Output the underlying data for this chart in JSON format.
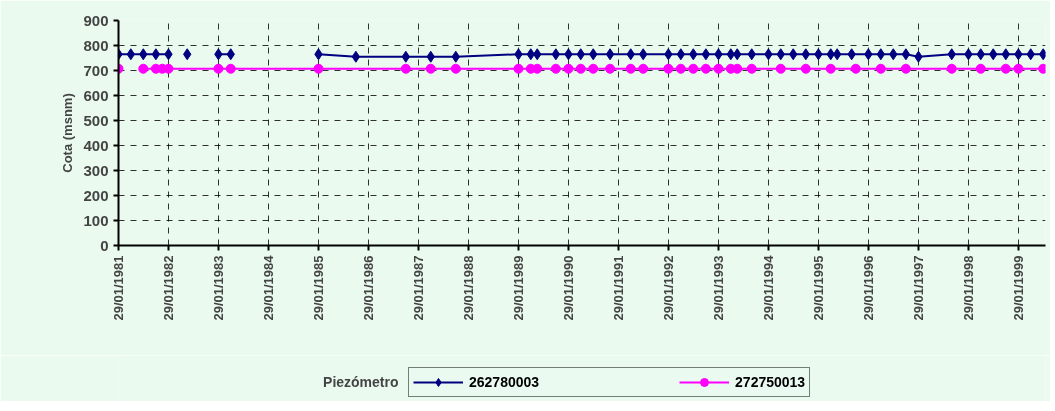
{
  "chart_data": {
    "type": "line",
    "ylabel": "Cota (msnm)",
    "legend_title": "Piezómetro",
    "legend": "bottom",
    "grid": true,
    "line_style": "solid",
    "ylim": [
      0,
      900
    ],
    "yticks": [
      0,
      100,
      200,
      300,
      400,
      500,
      600,
      700,
      800,
      900
    ],
    "xlim": [
      "1981-01-29",
      "1999-08-15"
    ],
    "xticks": [
      {
        "value": "1981-01-29",
        "label": "29/01/1981"
      },
      {
        "value": "1982-01-29",
        "label": "29/01/1982"
      },
      {
        "value": "1983-01-29",
        "label": "29/01/1983"
      },
      {
        "value": "1984-01-29",
        "label": "29/01/1984"
      },
      {
        "value": "1985-01-29",
        "label": "29/01/1985"
      },
      {
        "value": "1986-01-29",
        "label": "29/01/1986"
      },
      {
        "value": "1987-01-29",
        "label": "29/01/1987"
      },
      {
        "value": "1988-01-29",
        "label": "29/01/1988"
      },
      {
        "value": "1989-01-29",
        "label": "29/01/1989"
      },
      {
        "value": "1990-01-29",
        "label": "29/01/1990"
      },
      {
        "value": "1991-01-29",
        "label": "29/01/1991"
      },
      {
        "value": "1992-01-29",
        "label": "29/01/1992"
      },
      {
        "value": "1993-01-29",
        "label": "29/01/1993"
      },
      {
        "value": "1994-01-29",
        "label": "29/01/1994"
      },
      {
        "value": "1995-01-29",
        "label": "29/01/1995"
      },
      {
        "value": "1996-01-29",
        "label": "29/01/1996"
      },
      {
        "value": "1997-01-29",
        "label": "29/01/1997"
      },
      {
        "value": "1998-01-29",
        "label": "29/01/1998"
      },
      {
        "value": "1999-01-29",
        "label": "29/01/1999"
      }
    ],
    "series": [
      {
        "name": "262780003",
        "color": "#000080",
        "marker": "diamond",
        "x": [
          "1981-01-29",
          "1981-04-29",
          "1981-07-29",
          "1981-10-29",
          "1982-01-29",
          "1982-03-29",
          "1982-06-15",
          "1982-09-15",
          "1983-01-29",
          "1983-04-29",
          "1984-03-01",
          "1985-01-29",
          "1985-10-29",
          "1986-10-29",
          "1987-04-29",
          "1987-10-29",
          "1989-01-29",
          "1989-04-29",
          "1989-06-15",
          "1989-10-29",
          "1990-01-29",
          "1990-04-29",
          "1990-07-29",
          "1990-11-29",
          "1991-04-29",
          "1991-07-29",
          "1992-01-29",
          "1992-04-29",
          "1992-07-29",
          "1992-10-29",
          "1993-01-29",
          "1993-04-29",
          "1993-06-15",
          "1993-09-29",
          "1994-01-29",
          "1994-04-29",
          "1994-07-29",
          "1994-10-29",
          "1995-01-29",
          "1995-04-29",
          "1995-06-15",
          "1995-09-29",
          "1996-01-29",
          "1996-04-29",
          "1996-07-29",
          "1996-10-29",
          "1997-01-29",
          "1997-09-29",
          "1998-01-29",
          "1998-04-29",
          "1998-07-29",
          "1998-10-29",
          "1999-01-29",
          "1999-04-29",
          "1999-07-29"
        ],
        "values": [
          765,
          765,
          765,
          765,
          765,
          null,
          765,
          null,
          765,
          765,
          null,
          765,
          755,
          755,
          755,
          755,
          765,
          765,
          765,
          765,
          765,
          765,
          765,
          765,
          765,
          765,
          765,
          765,
          765,
          765,
          765,
          765,
          765,
          765,
          765,
          765,
          765,
          765,
          765,
          765,
          765,
          765,
          765,
          765,
          765,
          765,
          755,
          765,
          765,
          765,
          765,
          765,
          765,
          765,
          765
        ]
      },
      {
        "name": "272750013",
        "color": "#ff00ff",
        "marker": "circle",
        "x": [
          "1981-01-29",
          "1981-04-29",
          "1981-07-29",
          "1981-10-29",
          "1981-12-15",
          "1982-01-29",
          "1983-01-29",
          "1983-04-29",
          "1985-01-29",
          "1986-10-29",
          "1987-04-29",
          "1987-10-29",
          "1989-01-29",
          "1989-04-29",
          "1989-06-15",
          "1989-10-29",
          "1990-01-29",
          "1990-04-29",
          "1990-07-29",
          "1990-11-29",
          "1991-04-29",
          "1991-07-29",
          "1992-01-29",
          "1992-04-29",
          "1992-07-29",
          "1992-10-29",
          "1993-01-29",
          "1993-04-29",
          "1993-06-15",
          "1993-09-29",
          "1994-04-29",
          "1994-10-29",
          "1995-04-29",
          "1995-10-29",
          "1996-04-29",
          "1996-10-29",
          "1997-09-29",
          "1998-04-29",
          "1998-10-29",
          "1999-01-29",
          "1999-07-29"
        ],
        "values": [
          707,
          null,
          707,
          707,
          707,
          707,
          707,
          707,
          707,
          707,
          707,
          707,
          707,
          707,
          707,
          707,
          707,
          707,
          707,
          707,
          707,
          707,
          707,
          707,
          707,
          707,
          707,
          707,
          707,
          707,
          707,
          707,
          707,
          707,
          707,
          707,
          707,
          707,
          707,
          707,
          707
        ]
      }
    ]
  }
}
